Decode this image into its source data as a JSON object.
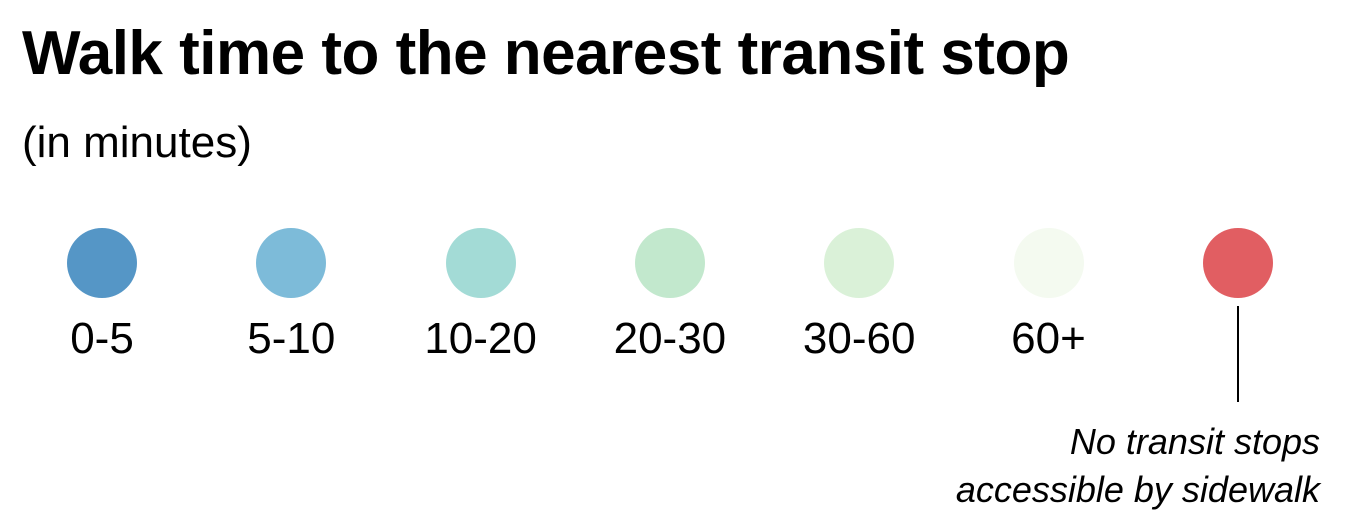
{
  "chart_data": {
    "type": "legend",
    "title": "Walk time to the nearest transit stop",
    "subtitle": "(in minutes)",
    "entries": [
      {
        "label": "0-5",
        "color": "#5596c6"
      },
      {
        "label": "5-10",
        "color": "#7dbbd9"
      },
      {
        "label": "10-20",
        "color": "#a3dbd6"
      },
      {
        "label": "20-30",
        "color": "#c2e8cd"
      },
      {
        "label": "30-60",
        "color": "#daf1d8"
      },
      {
        "label": "60+",
        "color": "#f4faf0"
      },
      {
        "label": "",
        "color": "#e15e62"
      }
    ],
    "annotation": {
      "lines": [
        "No transit stops",
        "accessible by sidewalk"
      ],
      "target_entry": 6
    }
  }
}
